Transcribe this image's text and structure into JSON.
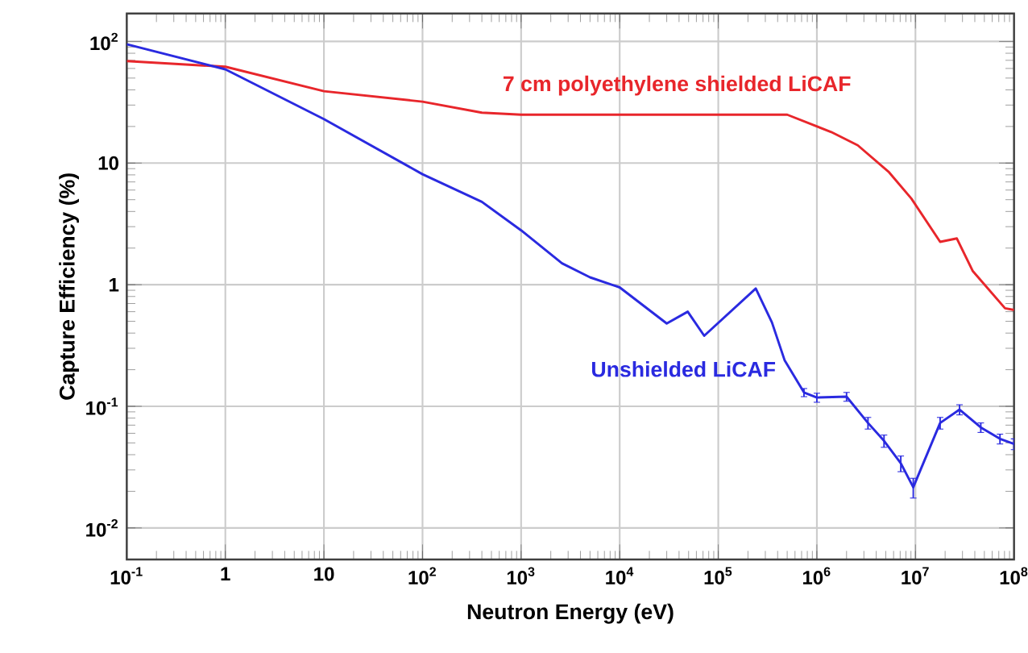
{
  "chart_data": {
    "type": "line",
    "xlabel": "Neutron Energy (eV)",
    "ylabel": "Capture Efficiency (%)",
    "log": "xy",
    "grid": true,
    "legend": false,
    "marker": "none",
    "line_style": "solid",
    "xlim": [
      0.1,
      100000000
    ],
    "ylim": [
      0.0055,
      170
    ],
    "xticks": [
      {
        "value": 0.1,
        "label": "10$^{-1}$"
      },
      1,
      10,
      {
        "value": 100,
        "label": "10$^{2}$"
      },
      {
        "value": 1000,
        "label": "10$^{3}$"
      },
      {
        "value": 10000,
        "label": "10$^{4}$"
      },
      {
        "value": 100000,
        "label": "10$^{5}$"
      },
      {
        "value": 1000000,
        "label": "10$^{6}$"
      },
      {
        "value": 10000000,
        "label": "10$^{7}$"
      },
      {
        "value": 100000000,
        "label": "10$^{8}$"
      }
    ],
    "yticks": [
      {
        "value": 0.01,
        "label": "10$^{-2}$"
      },
      {
        "value": 0.1,
        "label": "10$^{-1}$"
      },
      1,
      10,
      {
        "value": 100,
        "label": "10$^{2}$"
      }
    ],
    "series": [
      {
        "name": "7 cm polyethylene shielded LiCAF",
        "color": "#e8262b",
        "x": [
          0.1,
          1,
          10,
          100,
          400,
          1000,
          10000,
          100000,
          500000,
          1400000,
          2600000,
          5400000,
          9100000,
          17800000,
          26300000,
          38000000,
          81000000,
          100000000
        ],
        "values": [
          69,
          62,
          39,
          32,
          26,
          25,
          25,
          25,
          25,
          18,
          14,
          8.4,
          5.1,
          2.25,
          2.4,
          1.3,
          0.64,
          0.62
        ]
      },
      {
        "name": "Unshielded LiCAF",
        "color": "#2a2ae0",
        "x": [
          0.1,
          1,
          10,
          100,
          400,
          1000,
          2600,
          5000,
          10000,
          30000,
          49000,
          72000,
          240000,
          350000,
          470000,
          740000,
          1000000,
          2000000,
          3300000,
          4800000,
          7100000,
          9500000,
          17800000,
          28000000,
          46000000,
          72000000,
          100000000
        ],
        "values": [
          95,
          59,
          23,
          8.1,
          4.8,
          2.8,
          1.5,
          1.15,
          0.95,
          0.48,
          0.6,
          0.38,
          0.93,
          0.49,
          0.24,
          0.13,
          0.118,
          0.12,
          0.073,
          0.052,
          0.034,
          0.0216,
          0.073,
          0.094,
          0.067,
          0.054,
          0.049
        ],
        "errors": [
          null,
          null,
          null,
          null,
          null,
          null,
          null,
          null,
          null,
          null,
          null,
          null,
          null,
          null,
          null,
          0.01,
          0.01,
          0.01,
          0.008,
          0.006,
          0.005,
          0.004,
          0.008,
          0.009,
          0.006,
          0.005,
          0.005
        ]
      }
    ]
  }
}
